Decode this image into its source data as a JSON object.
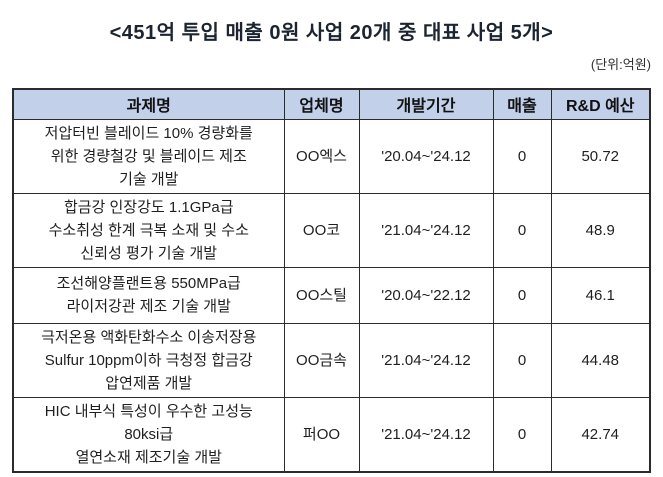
{
  "title": {
    "text": "<451억 투입 매출 0원 사업 20개 중 대표 사업 5개>",
    "unit_label": "(단위:억원)"
  },
  "colors": {
    "header_bg": "#c3d0ea",
    "border": "#2b2b2b",
    "title_text": "#1b2430",
    "body_text": "#1f1f1f",
    "background": "#ffffff"
  },
  "table": {
    "headers": [
      "과제명",
      "업체명",
      "개발기간",
      "매출",
      "R&D 예산"
    ],
    "rows": [
      {
        "project": "저압터빈 블레이드 10% 경량화를\n위한 경량철강 및 블레이드 제조\n기술 개발",
        "company": "OO엑스",
        "period": "'20.04~'24.12",
        "revenue": "0",
        "budget": "50.72"
      },
      {
        "project": "합금강 인장강도 1.1GPa급\n수소취성 한계 극복 소재 및 수소\n신뢰성 평가 기술 개발",
        "company": "OO코",
        "period": "'21.04~'24.12",
        "revenue": "0",
        "budget": "48.9"
      },
      {
        "project": "조선해양플랜트용 550MPa급\n라이저강관 제조 기술 개발",
        "company": "OO스틸",
        "period": "'20.04~'22.12",
        "revenue": "0",
        "budget": "46.1"
      },
      {
        "project": "극저온용 액화탄화수소 이송저장용\nSulfur 10ppm이하 극청정 합금강\n압연제품 개발",
        "company": "OO금속",
        "period": "'21.04~'24.12",
        "revenue": "0",
        "budget": "44.48"
      },
      {
        "project": "HIC 내부식 특성이 우수한 고성능\n80ksi급\n열연소재 제조기술 개발",
        "company": "퍼OO",
        "period": "'21.04~'24.12",
        "revenue": "0",
        "budget": "42.74"
      }
    ]
  }
}
